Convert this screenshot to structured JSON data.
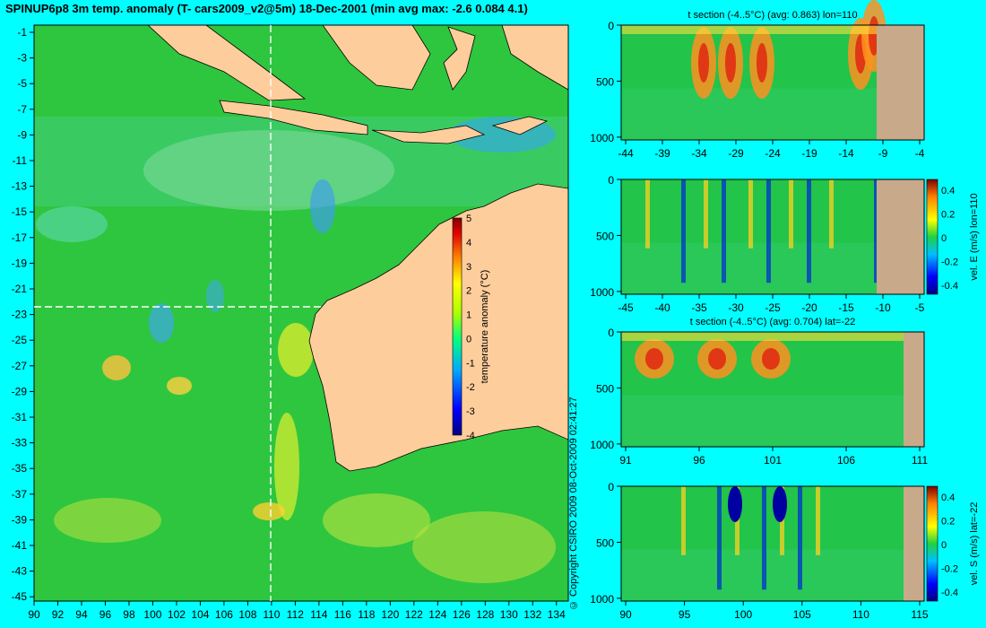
{
  "title": "SPINUP6p8 3m temp. anomaly (T- cars2009_v2@5m) 18-Dec-2001 (min avg max: -2.6 0.084 4.1)",
  "copyright": "© Copyright CSIRO 2009   08-Oct-2009 02:41:27",
  "colors": {
    "background": "#00ffff",
    "land": "#fecd9c",
    "section_land": "#c8a98a",
    "ocean": "#22c44a"
  },
  "map": {
    "lon_ticks": [
      "90",
      "92",
      "94",
      "96",
      "98",
      "100",
      "102",
      "104",
      "106",
      "108",
      "110",
      "112",
      "114",
      "116",
      "118",
      "120",
      "122",
      "124",
      "126",
      "128",
      "130",
      "132",
      "134"
    ],
    "lat_ticks": [
      "-1",
      "-3",
      "-5",
      "-7",
      "-9",
      "-11",
      "-13",
      "-15",
      "-17",
      "-19",
      "-21",
      "-23",
      "-25",
      "-27",
      "-29",
      "-31",
      "-33",
      "-35",
      "-37",
      "-39",
      "-41",
      "-43",
      "-45"
    ],
    "lon_range": [
      90,
      135
    ],
    "lat_range": [
      -45,
      0.5
    ],
    "section_lon": 110,
    "section_lat": -22,
    "colorbar": {
      "label": "temperature anomaly (°C)",
      "ticks": [
        "5",
        "4",
        "3",
        "2",
        "1",
        "0",
        "-1",
        "-2",
        "-3",
        "-4"
      ],
      "range": [
        -4,
        5
      ]
    }
  },
  "panels": [
    {
      "title": "t section (-4..5°C) (avg: 0.863) lon=110",
      "x_ticks": [
        "-44",
        "-39",
        "-34",
        "-29",
        "-24",
        "-19",
        "-14",
        "-9",
        "-4"
      ],
      "y_ticks": [
        "0",
        "500",
        "1000"
      ]
    },
    {
      "title": "",
      "x_ticks": [
        "-45",
        "-40",
        "-35",
        "-30",
        "-25",
        "-20",
        "-15",
        "-10",
        "-5"
      ],
      "y_ticks": [
        "0",
        "500",
        "1000"
      ],
      "colorbar": {
        "label": "vel. E (m/s) lon=110",
        "ticks": [
          "0.4",
          "0.2",
          "0",
          "-0.2",
          "-0.4"
        ]
      }
    },
    {
      "title": "t section (-4..5°C) (avg: 0.704) lat=-22",
      "x_ticks": [
        "91",
        "96",
        "101",
        "106",
        "111"
      ],
      "y_ticks": [
        "0",
        "500",
        "1000"
      ]
    },
    {
      "title": "",
      "x_ticks": [
        "90",
        "95",
        "100",
        "105",
        "110",
        "115"
      ],
      "y_ticks": [
        "0",
        "500",
        "1000"
      ],
      "colorbar": {
        "label": "vel. S (m/s) lat=-22",
        "ticks": [
          "0.4",
          "0.2",
          "0",
          "-0.2",
          "-0.4"
        ]
      }
    }
  ]
}
